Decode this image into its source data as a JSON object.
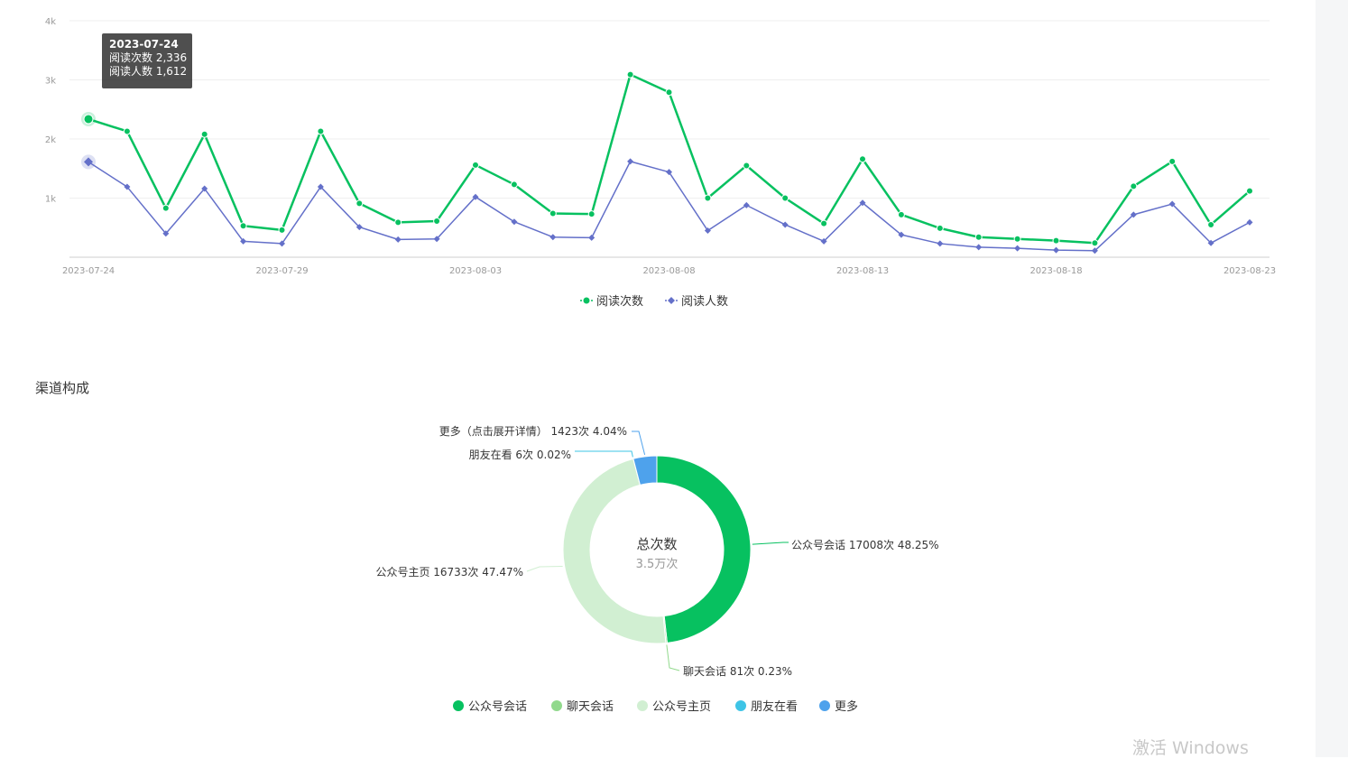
{
  "colors": {
    "reads": "#07c160",
    "readers": "#6470c9",
    "pie": [
      "#07c160",
      "#91d98c",
      "#d1efd2",
      "#3ec4e6",
      "#4ea2ec"
    ]
  },
  "tooltip": {
    "date": "2023-07-24",
    "line1": "阅读次数 2,336",
    "line2": "阅读人数 1,612"
  },
  "chart_data": [
    {
      "type": "line",
      "x": [
        "2023-07-24",
        "2023-07-25",
        "2023-07-26",
        "2023-07-27",
        "2023-07-28",
        "2023-07-29",
        "2023-07-30",
        "2023-07-31",
        "2023-08-01",
        "2023-08-02",
        "2023-08-03",
        "2023-08-04",
        "2023-08-05",
        "2023-08-06",
        "2023-08-07",
        "2023-08-08",
        "2023-08-09",
        "2023-08-10",
        "2023-08-11",
        "2023-08-12",
        "2023-08-13",
        "2023-08-14",
        "2023-08-15",
        "2023-08-16",
        "2023-08-17",
        "2023-08-18",
        "2023-08-19",
        "2023-08-20",
        "2023-08-21",
        "2023-08-22",
        "2023-08-23"
      ],
      "x_tick_labels": [
        "2023-07-24",
        "2023-07-29",
        "2023-08-03",
        "2023-08-08",
        "2023-08-13",
        "2023-08-18",
        "2023-08-23"
      ],
      "y_tick_labels": [
        "1k",
        "2k",
        "3k",
        "4k"
      ],
      "ylim": [
        0,
        4000
      ],
      "grid": true,
      "legend_position": "bottom",
      "series": [
        {
          "name": "阅读次数",
          "marker": "circle",
          "values": [
            2336,
            2130,
            830,
            2080,
            530,
            460,
            2130,
            910,
            590,
            610,
            1560,
            1230,
            740,
            730,
            3090,
            2790,
            1000,
            1550,
            1000,
            570,
            1660,
            720,
            490,
            340,
            310,
            280,
            240,
            1200,
            1620,
            550,
            1120
          ]
        },
        {
          "name": "阅读人数",
          "marker": "diamond",
          "values": [
            1612,
            1190,
            400,
            1160,
            270,
            230,
            1190,
            510,
            300,
            310,
            1020,
            600,
            340,
            330,
            1620,
            1440,
            450,
            880,
            550,
            270,
            920,
            380,
            230,
            170,
            150,
            120,
            110,
            720,
            900,
            240,
            590
          ]
        }
      ]
    },
    {
      "type": "pie",
      "title": "渠道构成",
      "center_title": "总次数",
      "center_value": "3.5万次",
      "legend_position": "bottom",
      "slices": [
        {
          "name": "公众号会话",
          "value": 17008,
          "percent": 48.25,
          "label": "公众号会话 17008次 48.25%"
        },
        {
          "name": "聊天会话",
          "value": 81,
          "percent": 0.23,
          "label": "聊天会话 81次 0.23%"
        },
        {
          "name": "公众号主页",
          "value": 16733,
          "percent": 47.47,
          "label": "公众号主页 16733次 47.47%"
        },
        {
          "name": "朋友在看",
          "value": 6,
          "percent": 0.02,
          "label": "朋友在看 6次 0.02%"
        },
        {
          "name": "更多",
          "value": 1423,
          "percent": 4.04,
          "label": "更多（点击展开详情） 1423次 4.04%"
        }
      ]
    }
  ],
  "watermark": "激活 Windows"
}
